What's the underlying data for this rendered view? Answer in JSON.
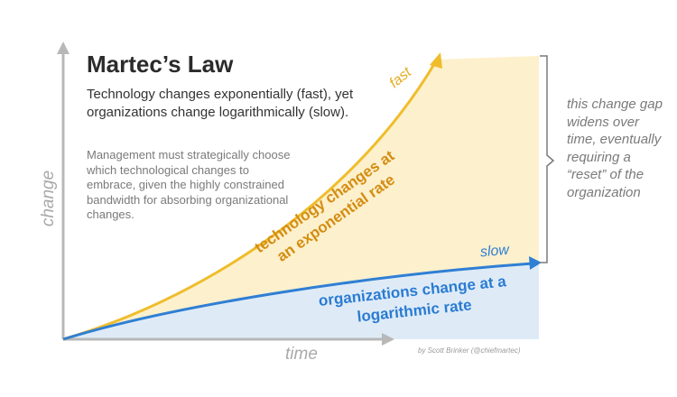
{
  "title": "Martec’s Law",
  "subtitle": "Technology changes exponentially (fast), yet organizations change logarithmically (slow).",
  "body_text": "Management must strategically choose which technological changes to embrace, given the highly constrained bandwidth for absorbing organizational changes.",
  "side_note": "this change gap widens over time, eventually requiring a “reset” of the organization",
  "credit": "by Scott Brinker (@chiefmartec)",
  "axes": {
    "x_label": "time",
    "y_label": "change"
  },
  "curves": {
    "technology": {
      "line1": "technology changes at",
      "line2": "an exponential rate",
      "end_label": "fast",
      "color": "#efbd2c"
    },
    "organizations": {
      "line1": "organizations change at a",
      "line2": "logarithmic rate",
      "end_label": "slow",
      "color": "#2f7fd4"
    }
  },
  "colors": {
    "gap_fill": "#fdf0cc",
    "org_fill": "#deebf7",
    "axis": "#b8b8b8"
  }
}
